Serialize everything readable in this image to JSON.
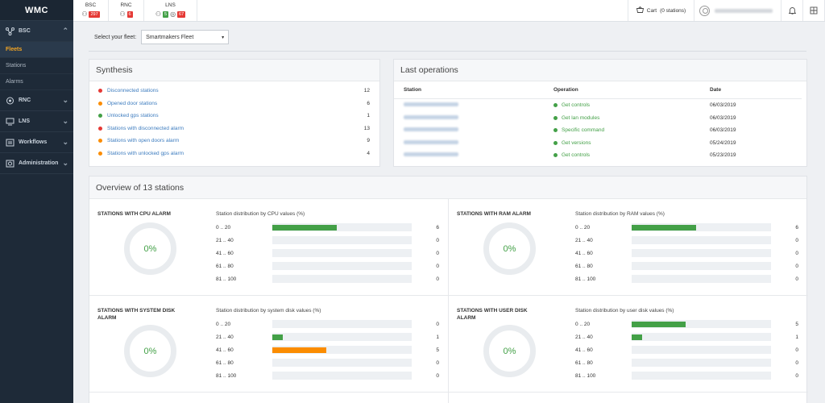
{
  "app": {
    "brand": "WMC"
  },
  "sidebar": {
    "groups": [
      {
        "label": "BSC",
        "icon": "network-icon",
        "expanded": true
      },
      {
        "label": "RNC",
        "icon": "radio-icon"
      },
      {
        "label": "LNS",
        "icon": "server-icon"
      },
      {
        "label": "Workflows",
        "icon": "workflow-icon"
      },
      {
        "label": "Administration",
        "icon": "admin-icon"
      }
    ],
    "bsc_items": [
      {
        "label": "Fleets",
        "active": true
      },
      {
        "label": "Stations"
      },
      {
        "label": "Alarms"
      }
    ]
  },
  "topbar": {
    "networks": [
      {
        "name": "BSC",
        "badges": [
          {
            "value": "297",
            "color": "#e53935"
          }
        ]
      },
      {
        "name": "RNC",
        "badges": [
          {
            "value": "6",
            "color": "#e53935"
          }
        ]
      },
      {
        "name": "LNS",
        "badges": [
          {
            "value": "5",
            "color": "#43a047"
          },
          {
            "value": "67",
            "color": "#e53935"
          }
        ]
      }
    ],
    "cart_label": "Cart",
    "cart_count": "(0 stations)"
  },
  "fleet": {
    "label": "Select your fleet:",
    "selected": "Smartmakers Fleet"
  },
  "synthesis": {
    "title": "Synthesis",
    "rows": [
      {
        "label": "Disconnected stations",
        "count": "12",
        "color": "#e53935"
      },
      {
        "label": "Opened door stations",
        "count": "6",
        "color": "#fb8c00"
      },
      {
        "label": "Unlocked gps stations",
        "count": "1",
        "color": "#43a047"
      },
      {
        "label": "Stations with disconnected alarm",
        "count": "13",
        "color": "#e53935"
      },
      {
        "label": "Stations with open doors alarm",
        "count": "9",
        "color": "#fb8c00"
      },
      {
        "label": "Stations with unlocked gps alarm",
        "count": "4",
        "color": "#fb8c00"
      }
    ]
  },
  "operations": {
    "title": "Last operations",
    "headers": {
      "station": "Station",
      "operation": "Operation",
      "date": "Date"
    },
    "rows": [
      {
        "operation": "Get controls",
        "date": "06/03/2019"
      },
      {
        "operation": "Get lan modules",
        "date": "06/03/2019"
      },
      {
        "operation": "Specific command",
        "date": "06/03/2019"
      },
      {
        "operation": "Get versions",
        "date": "05/24/2019"
      },
      {
        "operation": "Get controls",
        "date": "05/23/2019"
      }
    ]
  },
  "overview": {
    "title": "Overview of 13 stations",
    "panels": [
      {
        "title": "STATIONS WITH CPU ALARM",
        "percent": "0%",
        "dist_title": "Station distribution by CPU values (%)",
        "rows": [
          {
            "range": "0 .. 20",
            "value": 6,
            "fraction": 0.46,
            "color": "#43a047"
          },
          {
            "range": "21 .. 40",
            "value": 0,
            "fraction": 0,
            "color": "#43a047"
          },
          {
            "range": "41 .. 60",
            "value": 0,
            "fraction": 0,
            "color": "#43a047"
          },
          {
            "range": "61 .. 80",
            "value": 0,
            "fraction": 0,
            "color": "#43a047"
          },
          {
            "range": "81 .. 100",
            "value": 0,
            "fraction": 0,
            "color": "#43a047"
          }
        ]
      },
      {
        "title": "STATIONS WITH RAM ALARM",
        "percent": "0%",
        "dist_title": "Station distribution by RAM values (%)",
        "rows": [
          {
            "range": "0 .. 20",
            "value": 6,
            "fraction": 0.46,
            "color": "#43a047"
          },
          {
            "range": "21 .. 40",
            "value": 0,
            "fraction": 0,
            "color": "#43a047"
          },
          {
            "range": "41 .. 60",
            "value": 0,
            "fraction": 0,
            "color": "#43a047"
          },
          {
            "range": "61 .. 80",
            "value": 0,
            "fraction": 0,
            "color": "#43a047"
          },
          {
            "range": "81 .. 100",
            "value": 0,
            "fraction": 0,
            "color": "#43a047"
          }
        ]
      },
      {
        "title": "STATIONS WITH SYSTEM DISK ALARM",
        "percent": "0%",
        "dist_title": "Station distribution by system disk values (%)",
        "rows": [
          {
            "range": "0 .. 20",
            "value": 0,
            "fraction": 0,
            "color": "#43a047"
          },
          {
            "range": "21 .. 40",
            "value": 1,
            "fraction": 0.077,
            "color": "#43a047"
          },
          {
            "range": "41 .. 60",
            "value": 5,
            "fraction": 0.385,
            "color": "#fb8c00"
          },
          {
            "range": "61 .. 80",
            "value": 0,
            "fraction": 0,
            "color": "#43a047"
          },
          {
            "range": "81 .. 100",
            "value": 0,
            "fraction": 0,
            "color": "#43a047"
          }
        ]
      },
      {
        "title": "STATIONS WITH USER DISK ALARM",
        "percent": "0%",
        "dist_title": "Station distribution by user disk values (%)",
        "rows": [
          {
            "range": "0 .. 20",
            "value": 5,
            "fraction": 0.385,
            "color": "#43a047"
          },
          {
            "range": "21 .. 40",
            "value": 1,
            "fraction": 0.077,
            "color": "#43a047"
          },
          {
            "range": "41 .. 60",
            "value": 0,
            "fraction": 0,
            "color": "#43a047"
          },
          {
            "range": "61 .. 80",
            "value": 0,
            "fraction": 0,
            "color": "#43a047"
          },
          {
            "range": "81 .. 100",
            "value": 0,
            "fraction": 0,
            "color": "#43a047"
          }
        ]
      }
    ]
  }
}
